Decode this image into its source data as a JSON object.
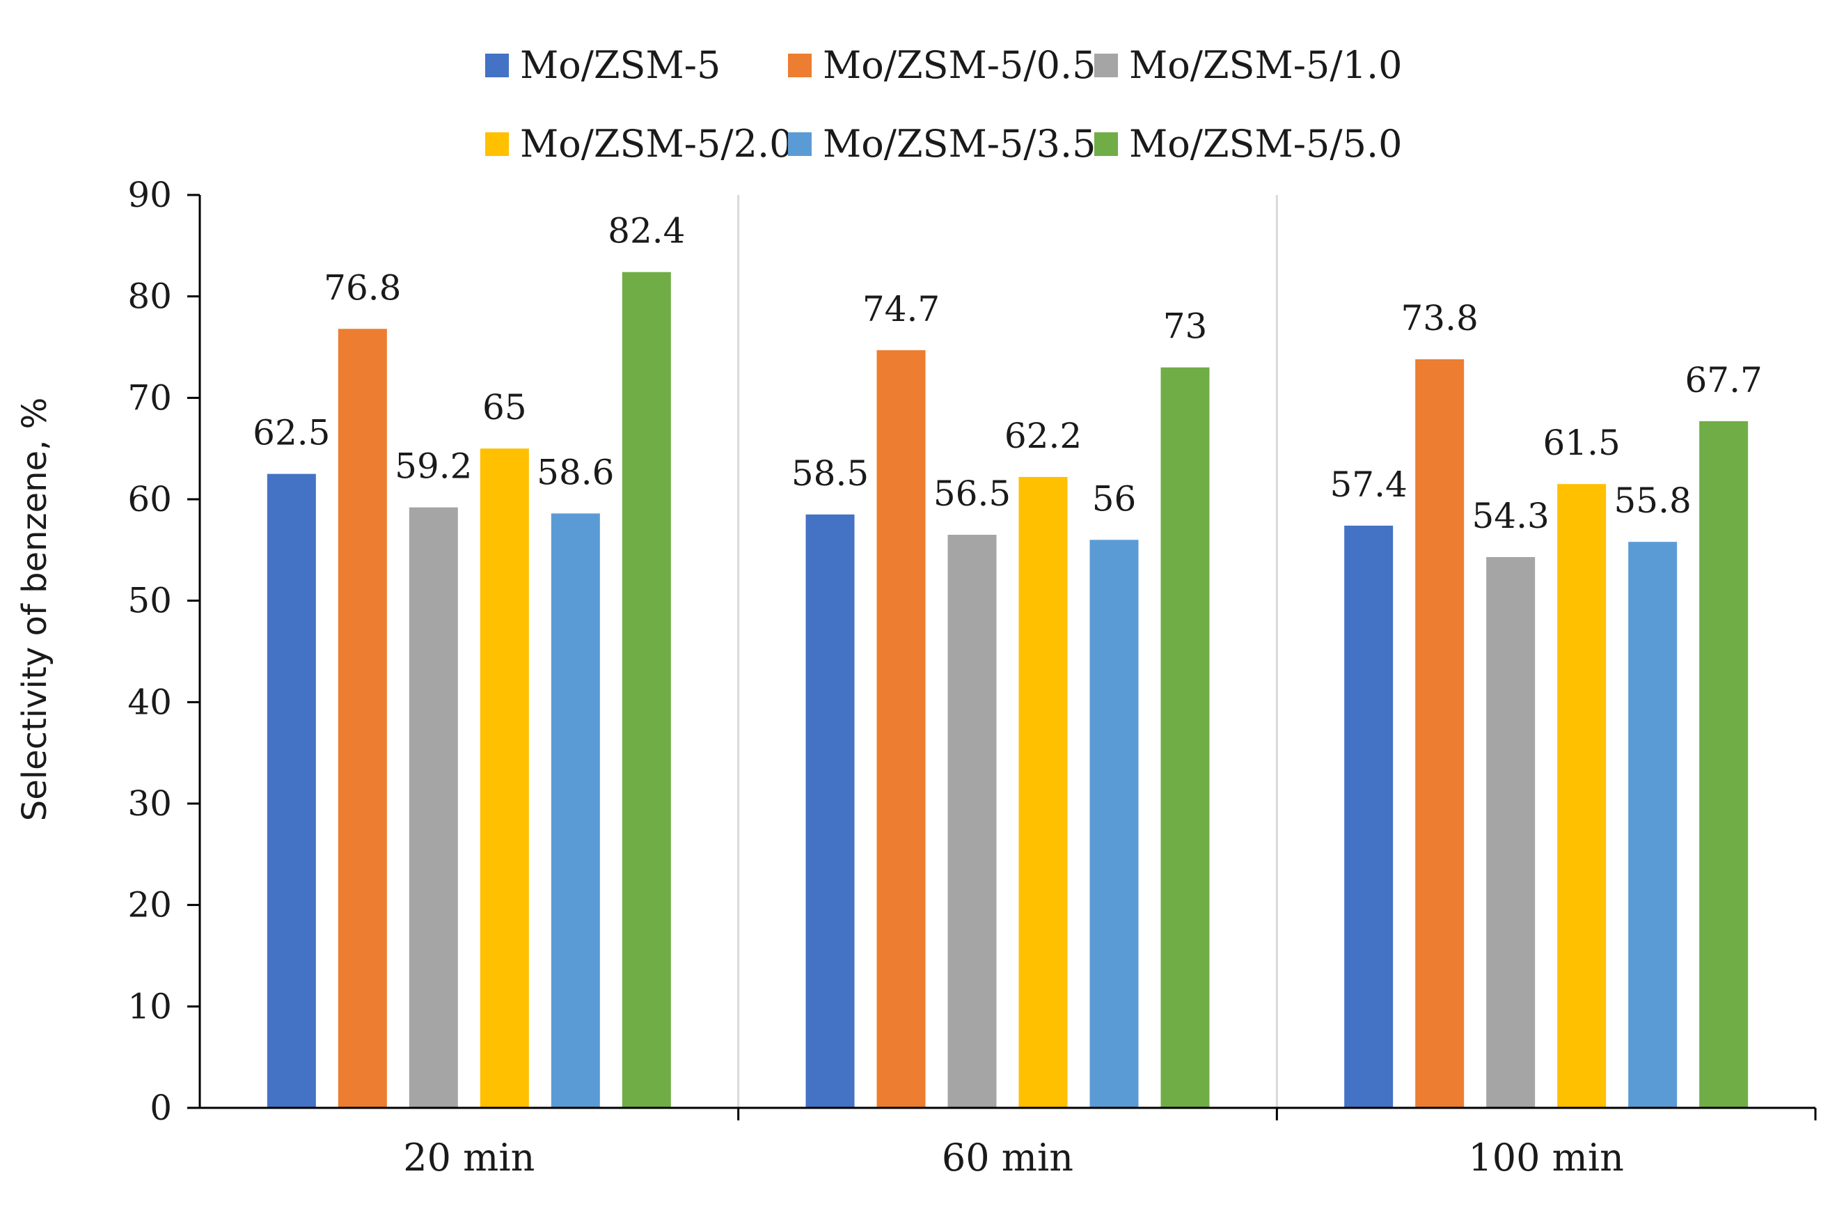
{
  "chart_data": {
    "type": "bar",
    "title": "",
    "xlabel": "",
    "ylabel": "Selectivity of benzene, %",
    "ylim": [
      0,
      90
    ],
    "yticks": [
      0,
      10,
      20,
      30,
      40,
      50,
      60,
      70,
      80,
      90
    ],
    "grid": false,
    "category_separators": true,
    "legend_position": "top",
    "categories": [
      "20 min",
      "60 min",
      "100 min"
    ],
    "series": [
      {
        "name": "Mo/ZSM-5",
        "color": "#4472C4",
        "values": [
          62.5,
          58.5,
          57.4
        ]
      },
      {
        "name": "Mo/ZSM-5/0.5",
        "color": "#ED7D31",
        "values": [
          76.8,
          74.7,
          73.8
        ]
      },
      {
        "name": "Mo/ZSM-5/1.0",
        "color": "#A5A5A5",
        "values": [
          59.2,
          56.5,
          54.3
        ]
      },
      {
        "name": "Mo/ZSM-5/2.0",
        "color": "#FFC000",
        "values": [
          65,
          62.2,
          61.5
        ]
      },
      {
        "name": "Mo/ZSM-5/3.5",
        "color": "#5B9BD5",
        "values": [
          58.6,
          56,
          55.8
        ]
      },
      {
        "name": "Mo/ZSM-5/5.0",
        "color": "#70AD47",
        "values": [
          82.4,
          73,
          67.7
        ]
      }
    ]
  }
}
